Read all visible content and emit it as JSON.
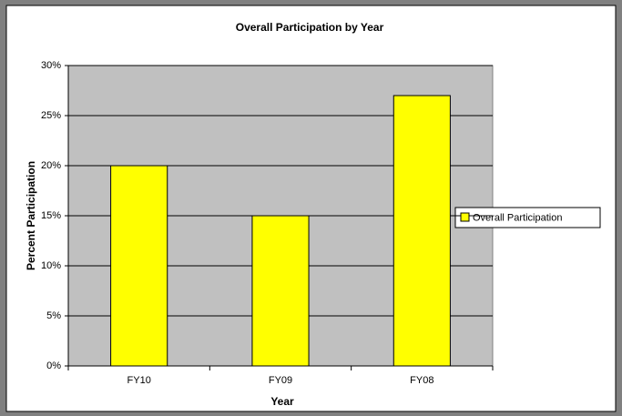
{
  "chart_data": {
    "type": "bar",
    "title": "Overall Participation by Year",
    "x_label": "Year",
    "y_label": "Percent Participation",
    "categories": [
      "FY10",
      "FY09",
      "FY08"
    ],
    "series": [
      {
        "name": "Overall Participation",
        "color": "#ffff00",
        "values": [
          20,
          15,
          27
        ]
      }
    ],
    "ylim": [
      0,
      30
    ],
    "yticks": [
      {
        "value": 0,
        "label": "0%"
      },
      {
        "value": 5,
        "label": "5%"
      },
      {
        "value": 10,
        "label": "10%"
      },
      {
        "value": 15,
        "label": "15%"
      },
      {
        "value": 20,
        "label": "20%"
      },
      {
        "value": 25,
        "label": "25%"
      },
      {
        "value": 30,
        "label": "30%"
      }
    ],
    "grid": true,
    "legend": "right",
    "plot_background": "#c0c0c0"
  }
}
